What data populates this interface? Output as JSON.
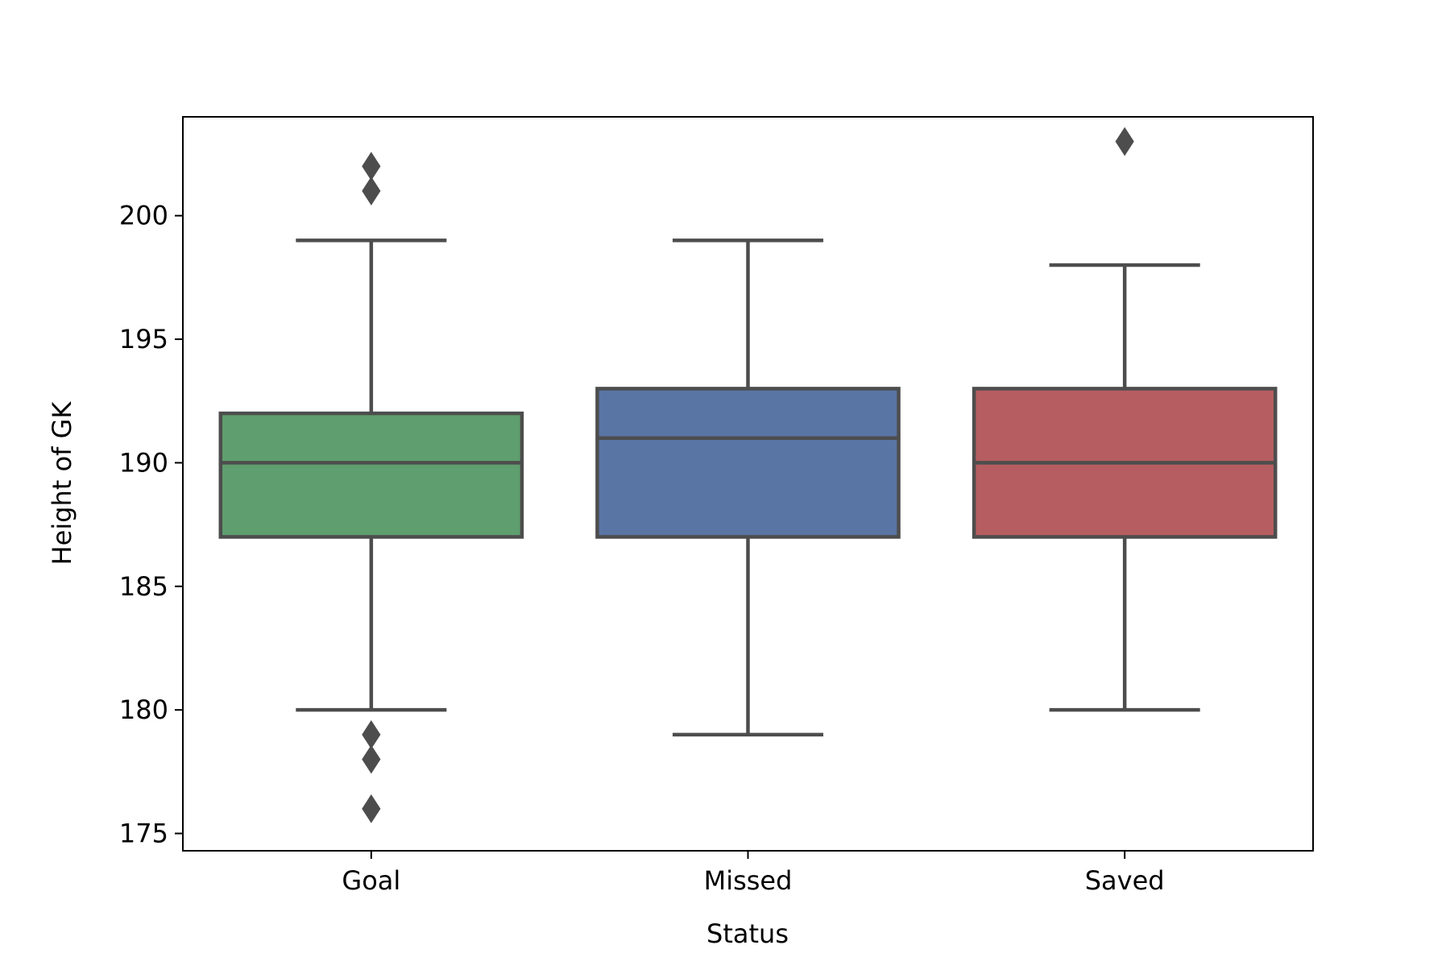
{
  "chart_data": {
    "type": "box",
    "title": "",
    "xlabel": "Status",
    "ylabel": "Height of GK",
    "ylim": [
      174.3,
      204.0
    ],
    "yticks": [
      175,
      180,
      185,
      190,
      195,
      200
    ],
    "ytick_labels": [
      "175",
      "180",
      "185",
      "190",
      "195",
      "200"
    ],
    "grid": false,
    "legend": "none",
    "categories": [
      "Goal",
      "Missed",
      "Saved"
    ],
    "boxes": [
      {
        "category": "Goal",
        "color": "#5f9e6e",
        "whisker_low": 180,
        "q1": 187,
        "median": 190,
        "q3": 192,
        "whisker_high": 199,
        "outliers": [
          202,
          201,
          179,
          178,
          176
        ]
      },
      {
        "category": "Missed",
        "color": "#5975a4",
        "whisker_low": 179,
        "q1": 187,
        "median": 191,
        "q3": 193,
        "whisker_high": 199,
        "outliers": []
      },
      {
        "category": "Saved",
        "color": "#b55d60",
        "whisker_low": 180,
        "q1": 187,
        "median": 190,
        "q3": 193,
        "whisker_high": 198,
        "outliers": [
          203
        ]
      }
    ],
    "line_color": "#4d4d4d"
  }
}
